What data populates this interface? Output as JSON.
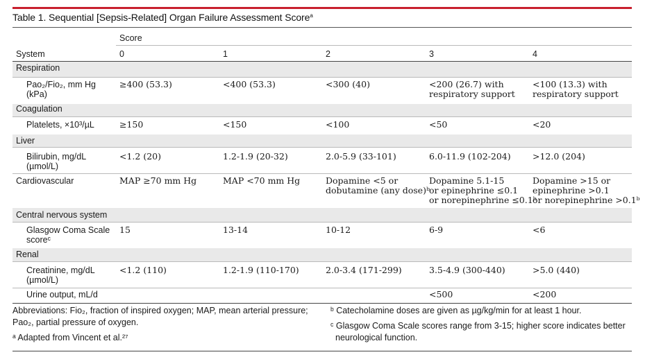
{
  "table": {
    "title": "Table 1. Sequential [Sepsis-Related] Organ Failure Assessment Score",
    "title_sup": "a",
    "score_header": "Score",
    "system_header": "System",
    "score_columns": [
      "0",
      "1",
      "2",
      "3",
      "4"
    ],
    "groups": [
      {
        "system": "Respiration",
        "rows": [
          {
            "label_lines": [
              "Pao₂/Fio₂, mm Hg",
              "(kPa)"
            ],
            "cells": [
              [
                "≥400 (53.3)"
              ],
              [
                "<400 (53.3)"
              ],
              [
                "<300 (40)"
              ],
              [
                "<200 (26.7) with",
                "respiratory support"
              ],
              [
                "<100 (13.3) with",
                "respiratory support"
              ]
            ]
          }
        ]
      },
      {
        "system": "Coagulation",
        "rows": [
          {
            "label_lines": [
              "Platelets, ×10³/µL"
            ],
            "cells": [
              [
                "≥150"
              ],
              [
                "<150"
              ],
              [
                "<100"
              ],
              [
                "<50"
              ],
              [
                "<20"
              ]
            ]
          }
        ]
      },
      {
        "system": "Liver",
        "rows": [
          {
            "label_lines": [
              "Bilirubin, mg/dL",
              "(µmol/L)"
            ],
            "cells": [
              [
                "<1.2 (20)"
              ],
              [
                "1.2-1.9 (20-32)"
              ],
              [
                "2.0-5.9 (33-101)"
              ],
              [
                "6.0-11.9 (102-204)"
              ],
              [
                ">12.0 (204)"
              ]
            ]
          }
        ]
      },
      {
        "system": "Cardiovascular",
        "inline": true,
        "cells": [
          [
            "MAP ≥70 mm Hg"
          ],
          [
            "MAP <70 mm Hg"
          ],
          [
            "Dopamine <5 or",
            "dobutamine (any dose)ᵇ"
          ],
          [
            "Dopamine 5.1-15",
            "or epinephrine ≤0.1",
            "or norepinephrine ≤0.1ᵇ"
          ],
          [
            "Dopamine >15 or",
            "epinephrine >0.1",
            "or norepinephrine >0.1ᵇ"
          ]
        ]
      },
      {
        "system": "Central nervous system",
        "rows": [
          {
            "label_lines": [
              "Glasgow Coma Scale",
              "scoreᶜ"
            ],
            "cells": [
              [
                "15"
              ],
              [
                "13-14"
              ],
              [
                "10-12"
              ],
              [
                "6-9"
              ],
              [
                "<6"
              ]
            ]
          }
        ]
      },
      {
        "system": "Renal",
        "rows": [
          {
            "label_lines": [
              "Creatinine, mg/dL",
              "(µmol/L)"
            ],
            "cells": [
              [
                "<1.2 (110)"
              ],
              [
                "1.2-1.9 (110-170)"
              ],
              [
                "2.0-3.4 (171-299)"
              ],
              [
                "3.5-4.9 (300-440)"
              ],
              [
                ">5.0 (440)"
              ]
            ]
          },
          {
            "label_lines": [
              "Urine output, mL/d"
            ],
            "cells": [
              [
                ""
              ],
              [
                ""
              ],
              [
                ""
              ],
              [
                "<500"
              ],
              [
                "<200"
              ]
            ]
          }
        ]
      }
    ]
  },
  "footnotes": {
    "abbreviations_line1": "Abbreviations: Fio₂, fraction of inspired oxygen; MAP, mean arterial pressure;",
    "abbreviations_line2": "Pao₂, partial pressure of oxygen.",
    "note_a": "ᵃ Adapted from Vincent et al.²⁷",
    "note_b": "ᵇ Catecholamine doses are given as µg/kg/min for at least 1 hour.",
    "note_c_line1": "ᶜ Glasgow Coma Scale scores range from 3-15; higher score indicates better",
    "note_c_line2": "neurological function."
  },
  "colors": {
    "accent_rule": "#c8202e",
    "row_shade": "#e9e9e9"
  }
}
